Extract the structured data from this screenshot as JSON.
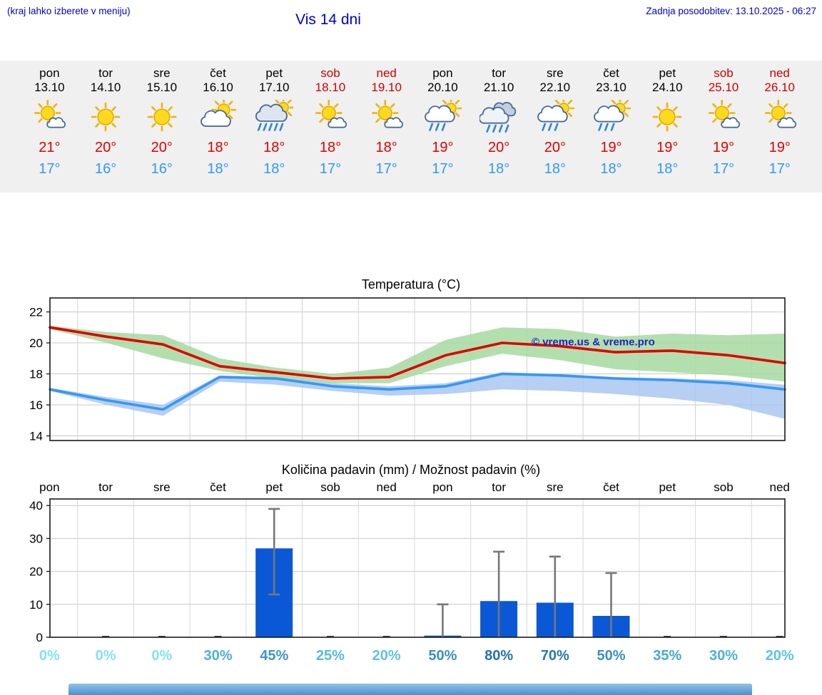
{
  "header": {
    "left_note": "(kraj lahko izberete v meniju)",
    "title": "Vis 14 dni",
    "last_update": "Zadnja posodobitev: 13.10.2025 - 06:27"
  },
  "forecast": {
    "days": [
      {
        "name": "pon",
        "date": "13.10",
        "weekend": false,
        "icon": "mostly-sunny",
        "high": "21°",
        "low": "17°"
      },
      {
        "name": "tor",
        "date": "14.10",
        "weekend": false,
        "icon": "sunny",
        "high": "20°",
        "low": "16°"
      },
      {
        "name": "sre",
        "date": "15.10",
        "weekend": false,
        "icon": "sunny",
        "high": "20°",
        "low": "16°"
      },
      {
        "name": "čet",
        "date": "16.10",
        "weekend": false,
        "icon": "partly-cloudy",
        "high": "18°",
        "low": "18°"
      },
      {
        "name": "pet",
        "date": "17.10",
        "weekend": false,
        "icon": "rain-sun",
        "high": "18°",
        "low": "18°"
      },
      {
        "name": "sob",
        "date": "18.10",
        "weekend": true,
        "icon": "mostly-sunny",
        "high": "18°",
        "low": "17°"
      },
      {
        "name": "ned",
        "date": "19.10",
        "weekend": true,
        "icon": "mostly-sunny",
        "high": "18°",
        "low": "17°"
      },
      {
        "name": "pon",
        "date": "20.10",
        "weekend": false,
        "icon": "showers-sun",
        "high": "19°",
        "low": "17°"
      },
      {
        "name": "tor",
        "date": "21.10",
        "weekend": false,
        "icon": "rain-cloudy",
        "high": "20°",
        "low": "18°"
      },
      {
        "name": "sre",
        "date": "22.10",
        "weekend": false,
        "icon": "showers-sun",
        "high": "20°",
        "low": "18°"
      },
      {
        "name": "čet",
        "date": "23.10",
        "weekend": false,
        "icon": "showers-sun",
        "high": "19°",
        "low": "18°"
      },
      {
        "name": "pet",
        "date": "24.10",
        "weekend": false,
        "icon": "sunny",
        "high": "19°",
        "low": "18°"
      },
      {
        "name": "sob",
        "date": "25.10",
        "weekend": true,
        "icon": "mostly-sunny",
        "high": "19°",
        "low": "17°"
      },
      {
        "name": "ned",
        "date": "26.10",
        "weekend": true,
        "icon": "mostly-sunny",
        "high": "19°",
        "low": "17°"
      }
    ]
  },
  "chart_data": [
    {
      "type": "line",
      "title": "Temperatura (°C)",
      "categories": [
        "pon",
        "tor",
        "sre",
        "čet",
        "pet",
        "sob",
        "ned",
        "pon",
        "tor",
        "sre",
        "čet",
        "pet",
        "sob",
        "ned"
      ],
      "ylim": [
        13.7,
        22.9
      ],
      "yticks": [
        14,
        16,
        18,
        20,
        22
      ],
      "grid": true,
      "watermark": "© vreme.us & vreme.pro",
      "watermark_color": "#2222bb",
      "series": [
        {
          "name": "max-temp",
          "color": "#e00000",
          "values": [
            21.0,
            20.4,
            19.9,
            18.5,
            18.1,
            17.7,
            17.8,
            19.2,
            20.0,
            19.8,
            19.4,
            19.5,
            19.2,
            18.7
          ]
        },
        {
          "name": "min-temp",
          "color": "#3598f5",
          "values": [
            17.0,
            16.3,
            15.7,
            17.8,
            17.7,
            17.2,
            17.0,
            17.2,
            18.0,
            17.9,
            17.7,
            17.6,
            17.4,
            17.0
          ]
        }
      ],
      "bands": [
        {
          "name": "max-range",
          "color": "#a6d9a0",
          "upper": [
            21.1,
            20.7,
            20.5,
            19.0,
            18.4,
            18.0,
            18.4,
            20.2,
            21.0,
            20.9,
            20.4,
            20.6,
            20.5,
            20.6
          ],
          "lower": [
            20.9,
            20.0,
            19.0,
            18.2,
            17.7,
            17.4,
            17.4,
            18.5,
            19.3,
            18.9,
            18.3,
            18.1,
            17.9,
            17.5
          ]
        },
        {
          "name": "min-range",
          "color": "#a9c7f0",
          "upper": [
            17.1,
            16.5,
            16.0,
            17.9,
            17.8,
            17.4,
            17.2,
            17.4,
            18.1,
            18.0,
            17.8,
            17.7,
            17.6,
            17.3
          ],
          "lower": [
            16.9,
            16.0,
            15.3,
            17.5,
            17.3,
            16.9,
            16.6,
            16.7,
            17.0,
            16.9,
            16.7,
            16.4,
            16.0,
            15.1
          ]
        }
      ]
    },
    {
      "type": "bar",
      "title": "Količina padavin (mm) / Možnost padavin (%)",
      "categories": [
        "pon",
        "tor",
        "sre",
        "čet",
        "pet",
        "sob",
        "ned",
        "pon",
        "tor",
        "sre",
        "čet",
        "pet",
        "sob",
        "ned"
      ],
      "ylim": [
        0,
        42
      ],
      "yticks": [
        0,
        10,
        20,
        30,
        40
      ],
      "bar_color": "#0a58d6",
      "whisker_color": "#777777",
      "values": [
        0,
        0,
        0,
        0,
        27,
        0,
        0,
        0.5,
        11,
        10.5,
        6.5,
        0,
        0,
        0
      ],
      "whisker_high": [
        0,
        0,
        0,
        0,
        39,
        0,
        0,
        10,
        26,
        24.5,
        19.5,
        0,
        0,
        0
      ],
      "whisker_low": [
        0,
        0,
        0,
        0,
        13,
        0,
        0,
        0,
        0,
        0,
        0,
        0,
        0,
        0
      ],
      "probabilities": [
        "0%",
        "0%",
        "0%",
        "30%",
        "45%",
        "25%",
        "20%",
        "50%",
        "80%",
        "70%",
        "50%",
        "35%",
        "30%",
        "20%"
      ],
      "prob_values": [
        0,
        0,
        0,
        30,
        45,
        25,
        20,
        50,
        80,
        70,
        50,
        35,
        30,
        20
      ],
      "prob_colors": [
        "#8ae0ed",
        "#8ae0ed",
        "#8ae0ed",
        "#4fb0d4",
        "#3d97c4",
        "#58bbda",
        "#5fc3de",
        "#3890c0",
        "#2670ab",
        "#2b77b0",
        "#3890c0",
        "#49a8cf",
        "#4fb0d4",
        "#5fc3de"
      ]
    }
  ],
  "colors": {
    "accent_blue": "#0000cc",
    "high_red": "#dd0000",
    "low_blue": "#3399ee",
    "strip_bg": "#f0f0f0",
    "footer_blue": "#4e8fc7"
  }
}
